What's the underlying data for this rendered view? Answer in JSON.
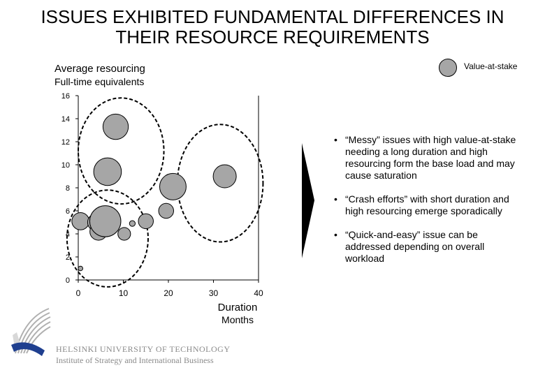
{
  "title_line1": "ISSUES EXHIBITED FUNDAMENTAL DIFFERENCES IN",
  "title_line2": "THEIR RESOURCE REQUIREMENTS",
  "legend": {
    "label": "Value-at-stake",
    "color": "#a6a6a6"
  },
  "chart_data": {
    "type": "scatter",
    "subtype": "bubble",
    "ylabel": "Average resourcing",
    "yunit": "Full-time equivalents",
    "xlabel": "Duration",
    "xunit": "Months",
    "xlim": [
      0,
      40
    ],
    "ylim": [
      0,
      16
    ],
    "xticks": [
      0,
      10,
      20,
      30,
      40
    ],
    "yticks": [
      0,
      2,
      4,
      6,
      8,
      10,
      12,
      14,
      16
    ],
    "bubble_color": "#a6a6a6",
    "points": [
      {
        "x": 8.3,
        "y": 13.3,
        "size": 2.2
      },
      {
        "x": 6.5,
        "y": 9.4,
        "size": 2.4
      },
      {
        "x": 21.0,
        "y": 8.1,
        "size": 2.3
      },
      {
        "x": 32.5,
        "y": 9.0,
        "size": 2.0
      },
      {
        "x": 19.5,
        "y": 6.0,
        "size": 1.3
      },
      {
        "x": 0.5,
        "y": 5.1,
        "size": 1.5
      },
      {
        "x": 4.0,
        "y": 5.0,
        "size": 1.5
      },
      {
        "x": 4.5,
        "y": 4.2,
        "size": 1.5
      },
      {
        "x": 6.0,
        "y": 5.1,
        "size": 2.7
      },
      {
        "x": 10.2,
        "y": 4.0,
        "size": 1.1
      },
      {
        "x": 12.0,
        "y": 4.9,
        "size": 0.5
      },
      {
        "x": 15.0,
        "y": 5.1,
        "size": 1.3
      },
      {
        "x": 0.5,
        "y": 1.0,
        "size": 0.4
      }
    ],
    "groups": [
      {
        "label": "Messy issues",
        "cx": 9.5,
        "cy": 11.2,
        "rx": 19,
        "ry": 9.2
      },
      {
        "label": "Crash efforts",
        "cx": 31.5,
        "cy": 8.4,
        "rx": 19,
        "ry": 10.2
      },
      {
        "label": "Quick-and-easy",
        "cx": 6.5,
        "cy": 3.6,
        "rx": 18,
        "ry": 8.4
      }
    ]
  },
  "bullet_char": "•",
  "bullets": [
    "“Messy” issues with high value-at-stake needing a long duration and high resourcing form the base load and may cause saturation",
    "“Crash efforts” with short duration and high resourcing emerge sporadically",
    "“Quick-and-easy” issue can be addressed depending on overall workload"
  ],
  "footer": {
    "university": "HELSINKI UNIVERSITY OF TECHNOLOGY",
    "institute": "Institute of Strategy and International Business"
  }
}
